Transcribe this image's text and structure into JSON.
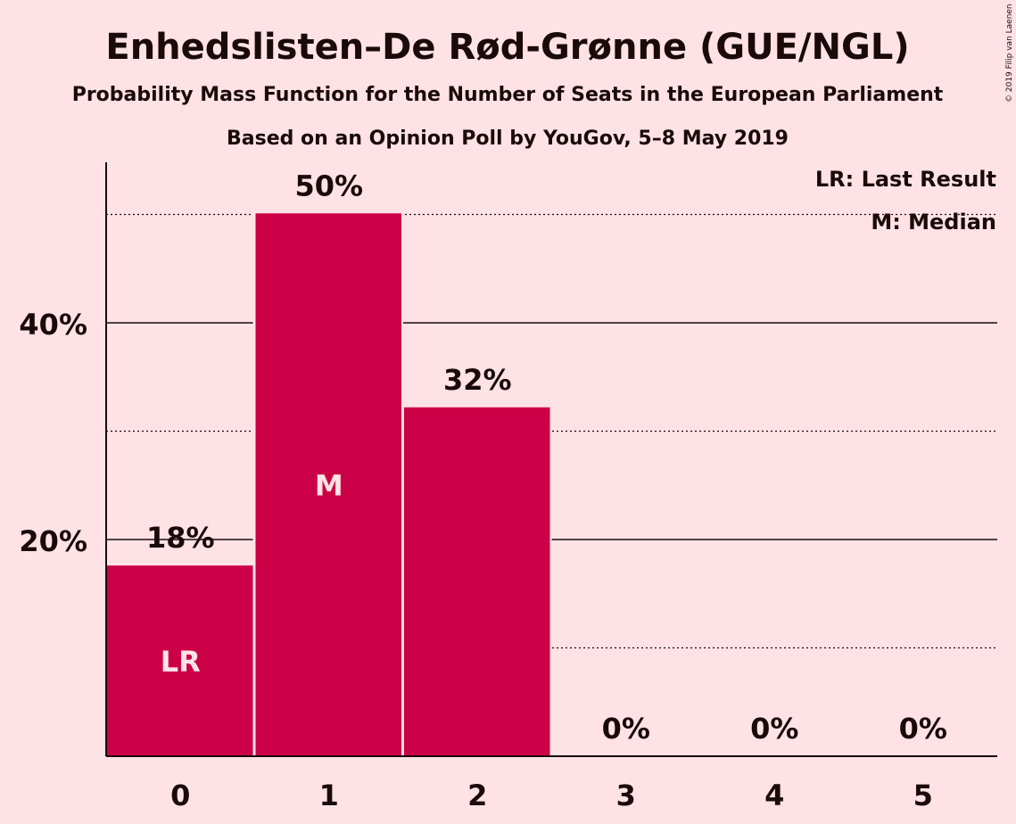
{
  "copyright": "© 2019 Filip van Laenen",
  "colors": {
    "background": "#ffe2e6",
    "bar": "#cc0046",
    "text": "#1a0a0a",
    "bar_label": "#ffe2e6"
  },
  "chart_data": {
    "type": "bar",
    "title": "Enhedslisten–De Rød-Grønne (GUE/NGL)",
    "subtitle": "Probability Mass Function for the Number of Seats in the European Parliament",
    "subtitle2": "Based on an Opinion Poll by YouGov, 5–8 May 2019",
    "xlabel": "",
    "ylabel": "",
    "categories": [
      "0",
      "1",
      "2",
      "3",
      "4",
      "5"
    ],
    "values": [
      17.6,
      50.1,
      32.2,
      0,
      0,
      0
    ],
    "value_labels": [
      "18%",
      "50%",
      "32%",
      "0%",
      "0%",
      "0%"
    ],
    "bar_markers": [
      "LR",
      "M",
      "",
      "",
      "",
      ""
    ],
    "y_ticks": [
      {
        "value": 20,
        "label": "20%"
      },
      {
        "value": 40,
        "label": "40%"
      }
    ],
    "minor_gridlines": [
      10,
      30,
      50
    ],
    "ylim": [
      0,
      55
    ],
    "legend": {
      "placement": "top-right",
      "entries": [
        "LR: Last Result",
        "M: Median"
      ]
    }
  }
}
